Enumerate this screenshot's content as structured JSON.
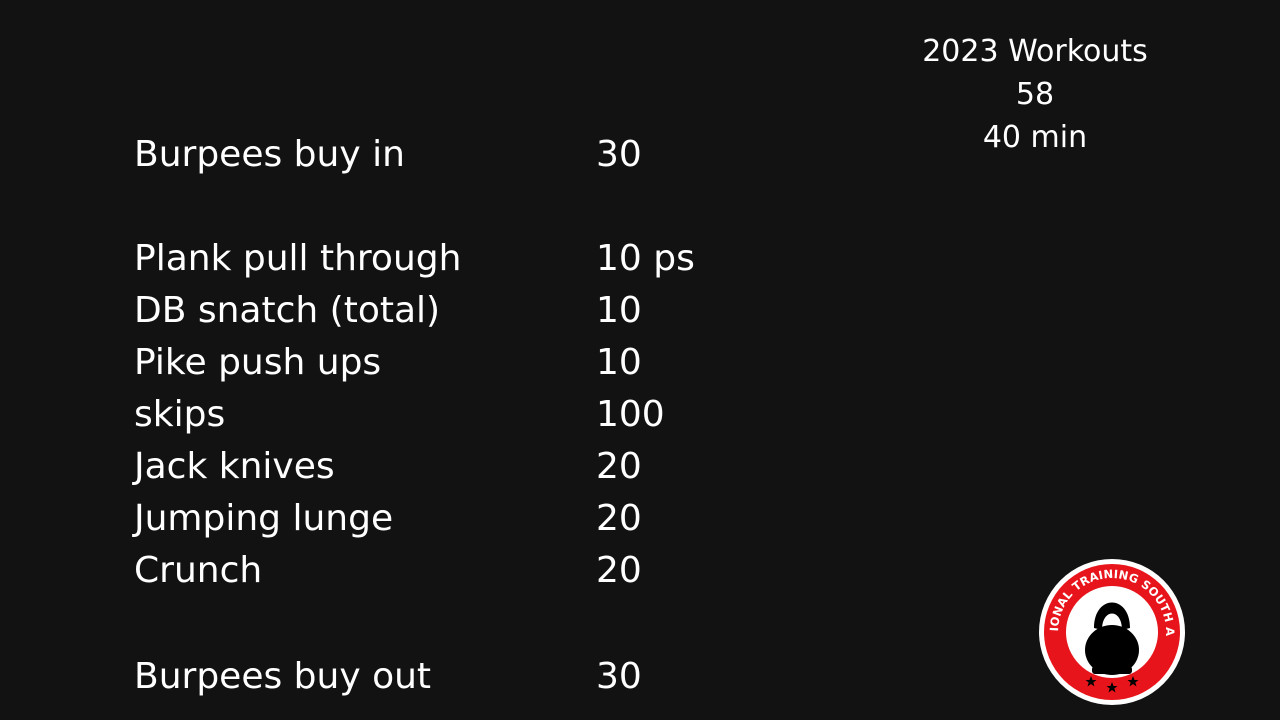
{
  "header": {
    "title": "2023 Workouts",
    "number": "58",
    "duration": "40 min"
  },
  "exercises": [
    {
      "name": "Burpees buy in",
      "reps": "30"
    },
    {
      "name": "Plank pull through",
      "reps": "10 ps"
    },
    {
      "name": "DB snatch (total)",
      "reps": "10"
    },
    {
      "name": "Pike push ups",
      "reps": "10"
    },
    {
      "name": "skips",
      "reps": "100"
    },
    {
      "name": "Jack knives",
      "reps": "20"
    },
    {
      "name": "Jumping lunge",
      "reps": "20"
    },
    {
      "name": "Crunch",
      "reps": "20"
    },
    {
      "name": "Burpees buy out",
      "reps": "30"
    }
  ],
  "logo": {
    "text": "FUNCTIONAL TRAINING SOUTH AFRICA",
    "icon": "kettlebell-icon",
    "ring_color": "#e8141b",
    "accent_color": "#000000"
  }
}
